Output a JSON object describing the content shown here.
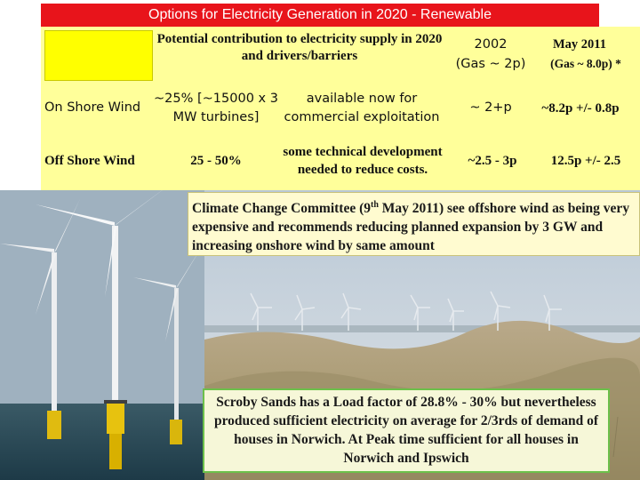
{
  "title": "Options for Electricity Generation in 2020 - Renewable",
  "header": {
    "potential": "Potential contribution to electricity supply in 2020  and drivers/barriers",
    "col_2002_year": "2002",
    "col_2002_gas": "(Gas ~ 2p)",
    "col_2011_year": "May 2011",
    "col_2011_gas": "(Gas ~ 8.0p)  *"
  },
  "rows": [
    {
      "label": "On Shore Wind",
      "potential": "~25% [~15000 x 3 MW turbines]",
      "drivers": "available now for commercial exploitation",
      "cost_2002": "~ 2+p",
      "cost_2011": "~8.2p +/- 0.8p"
    },
    {
      "label": "Off Shore Wind",
      "potential": "25 - 50%",
      "drivers": "some technical development needed  to reduce costs.",
      "cost_2002": "~2.5 - 3p",
      "cost_2011": "12.5p +/- 2.5"
    }
  ],
  "callout": {
    "before": "Climate Change Committee (9",
    "sup": "th",
    "after": " May 2011) see offshore wind as being very expensive and recommends reducing planned expansion by 3 GW and increasing onshore wind by same amount"
  },
  "caption": "Scroby Sands has a Load factor of  28.8% - 30%  but nevertheless produced sufficient electricity on average for 2/3rds of demand of houses in Norwich.   At Peak time sufficient for all houses in Norwich and Ipswich"
}
